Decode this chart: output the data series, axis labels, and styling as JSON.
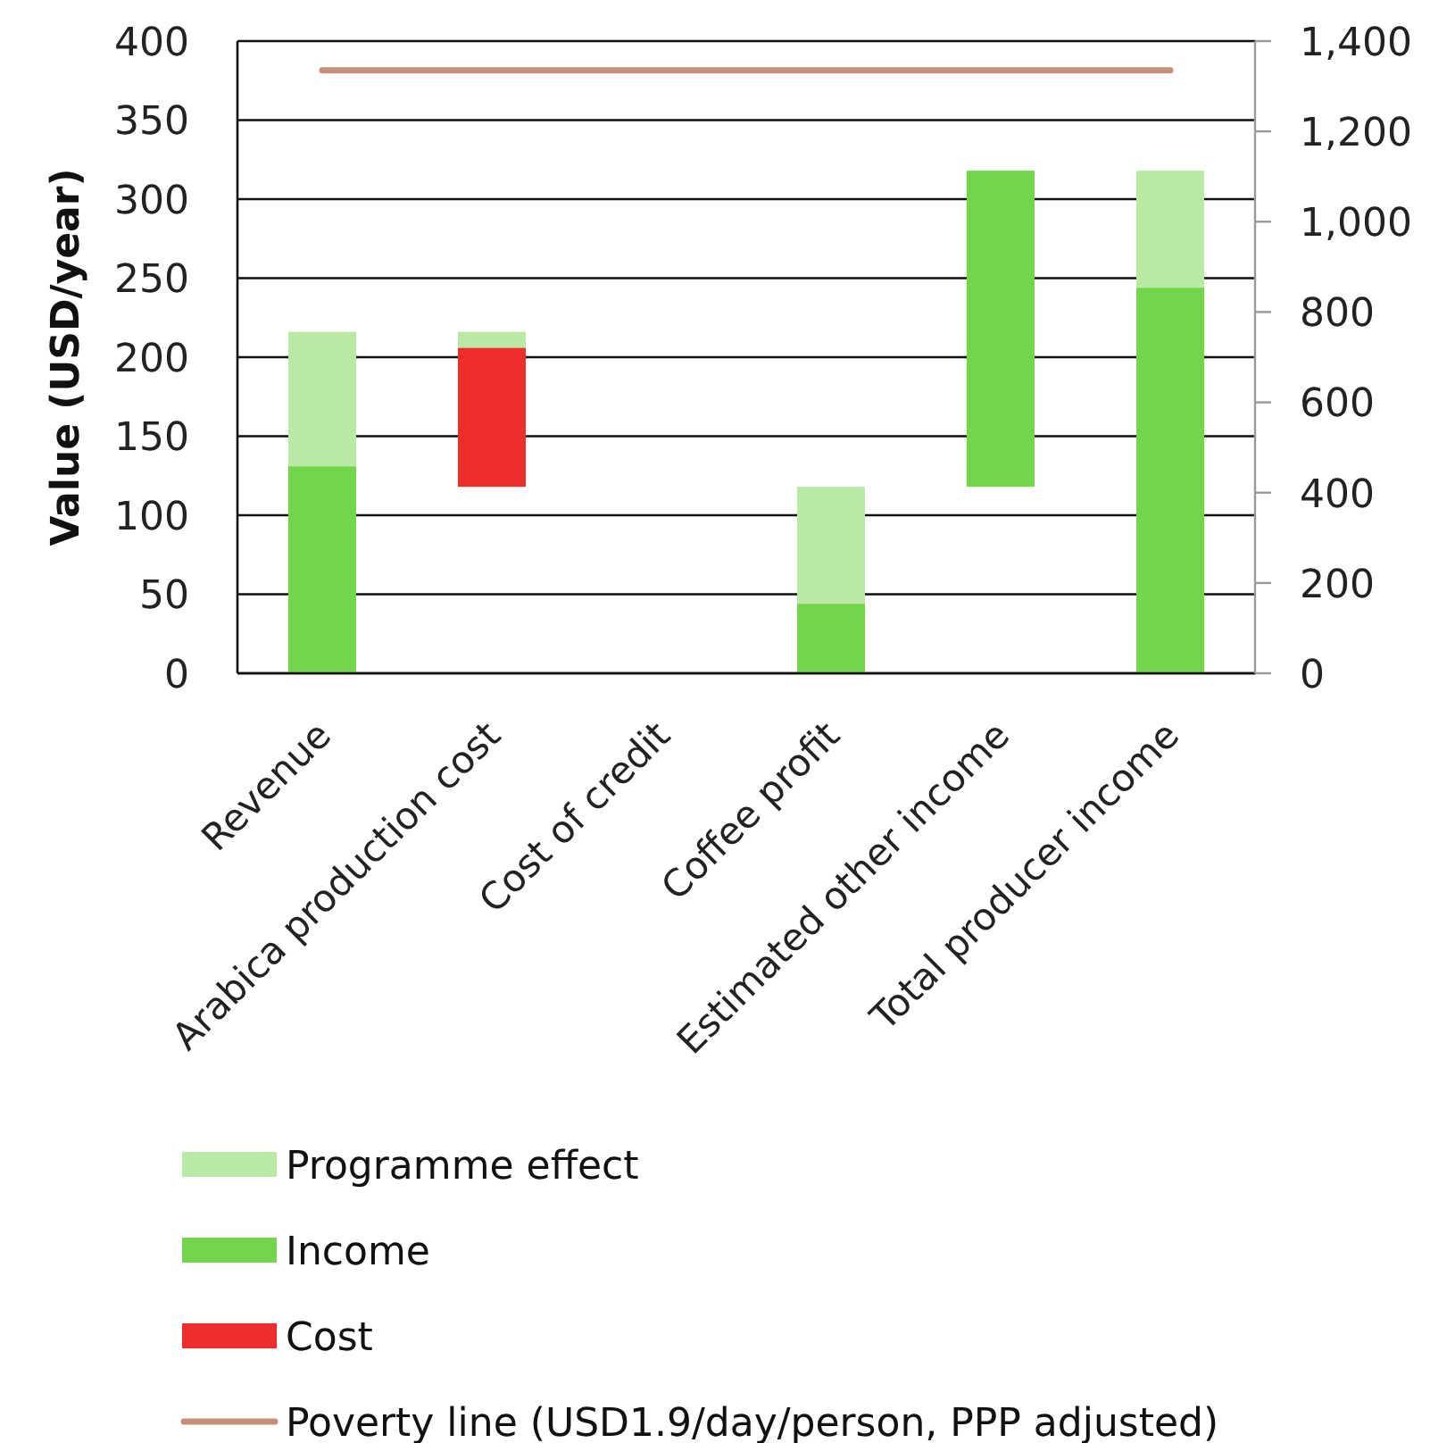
{
  "chart_data": {
    "type": "bar",
    "ylabel": "Value (USD/year)",
    "categories": [
      "Revenue",
      "Arabica production cost",
      "Cost of credit",
      "Coffee profit",
      "Estimated other income",
      "Total producer income"
    ],
    "stacked": true,
    "series": [
      {
        "name": "Cost",
        "color": "#ee2e2a",
        "values": [
          null,
          88,
          null,
          null,
          null,
          null
        ],
        "base": [
          null,
          118,
          null,
          null,
          null,
          null
        ]
      },
      {
        "name": "Income",
        "color": "#73d54b",
        "values": [
          131,
          null,
          null,
          44,
          200,
          244
        ],
        "base": [
          0,
          null,
          null,
          0,
          118,
          0
        ]
      },
      {
        "name": "Programme effect",
        "color": "#b9e9a5",
        "values": [
          85,
          10,
          null,
          74,
          null,
          74
        ]
      },
      {
        "name": "Poverty line (USD1.9/day/person, PPP adjusted)",
        "type": "line",
        "axis": "y2",
        "color": "#c68f7c",
        "values": [
          1335,
          1335,
          1335,
          1335,
          1335,
          1335
        ]
      }
    ],
    "ylim": [
      0,
      400
    ],
    "yticks": [
      0,
      50,
      100,
      150,
      200,
      250,
      300,
      350,
      400
    ],
    "y2lim": [
      0,
      1400
    ],
    "y2ticks": [
      0,
      200,
      400,
      600,
      800,
      {
        "value": 1000,
        "label": "1,000"
      },
      {
        "value": 1200,
        "label": "1,200"
      },
      {
        "value": 1400,
        "label": "1,400"
      }
    ],
    "grid": "y",
    "legend": "bottom"
  }
}
